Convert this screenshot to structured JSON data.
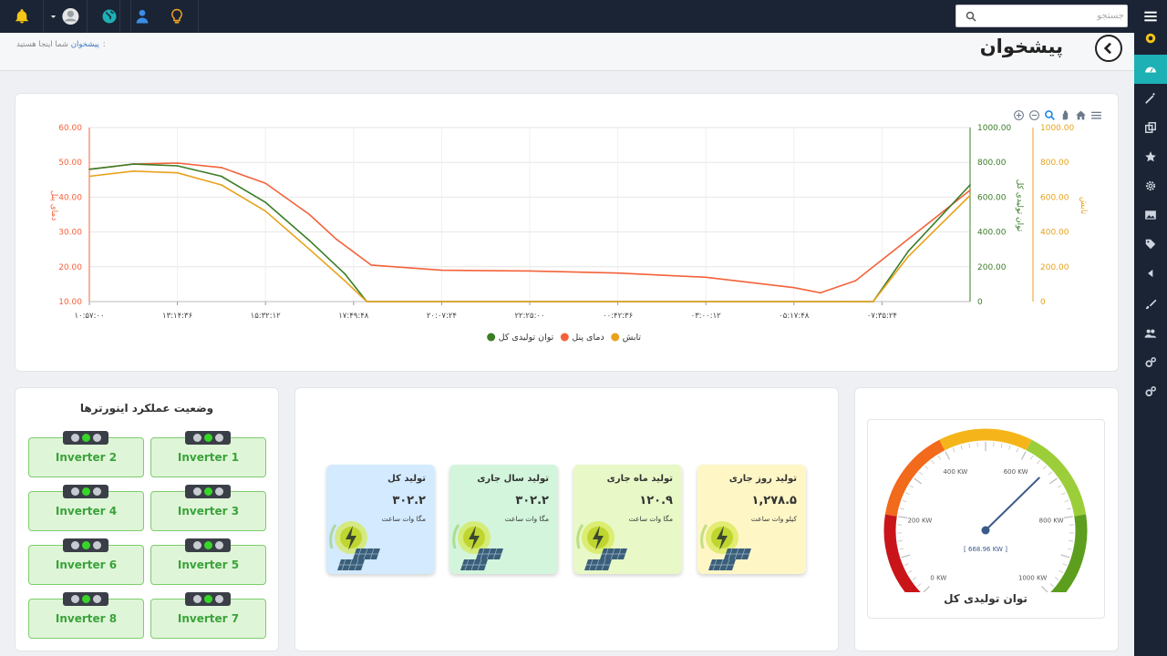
{
  "search": {
    "placeholder": "جستجو"
  },
  "header": {
    "page_title": "پیشخوان",
    "breadcrumb_prefix": "شما اینجا هستید:",
    "breadcrumb_current": "پیشخوان"
  },
  "topbar": {
    "icons": [
      "bell-icon",
      "user-avatar",
      "globe-icon",
      "user-icon",
      "lightbulb-icon"
    ]
  },
  "sidebar": {
    "icons": [
      "menu-icon",
      "badge-icon",
      "dashboard-icon",
      "magic-wand-icon",
      "copy-icon",
      "star-icon",
      "gear-icon",
      "image-icon",
      "tag-icon",
      "caret-left-icon",
      "brush-icon",
      "users-icon",
      "cogs-icon",
      "cogs-icon"
    ]
  },
  "chart_data": {
    "type": "line",
    "x_ticks": [
      "۱۰:۵۷:۰۰",
      "۱۳:۱۴:۳۶",
      "۱۵:۳۲:۱۲",
      "۱۷:۴۹:۴۸",
      "۲۰:۰۷:۲۴",
      "۲۲:۲۵:۰۰",
      "۰۰:۴۲:۳۶",
      "۰۳:۰۰:۱۲",
      "۰۵:۱۷:۴۸",
      "۰۷:۳۵:۲۴"
    ],
    "left_axis": {
      "label": "دمای پنل",
      "range": [
        10,
        60
      ],
      "ticks": [
        "60.00",
        "50.00",
        "40.00",
        "30.00",
        "20.00",
        "10.00"
      ],
      "color": "#f4623a"
    },
    "right_axis_1": {
      "label": "توان تولیدی کل",
      "range": [
        0,
        1000
      ],
      "ticks": [
        "1000.00",
        "800.00",
        "600.00",
        "400.00",
        "200.00",
        "0"
      ],
      "color": "#3a7d27"
    },
    "right_axis_2": {
      "label": "تابش",
      "range": [
        0,
        1000
      ],
      "ticks": [
        "1000.00",
        "800.00",
        "600.00",
        "400.00",
        "200.00",
        "0"
      ],
      "color": "#e8a21c"
    },
    "series": [
      {
        "name": "دمای پنل",
        "axis": "left",
        "color": "#f4623a",
        "x": [
          0,
          0.5,
          1,
          1.5,
          2,
          2.5,
          2.8,
          3.2,
          4,
          5,
          6,
          7,
          8,
          8.3,
          8.7,
          9.5,
          10
        ],
        "y": [
          48,
          49.5,
          49.8,
          48.5,
          44,
          35,
          28,
          20.5,
          19,
          18.8,
          18.2,
          17,
          14,
          12.5,
          16,
          32,
          42
        ]
      },
      {
        "name": "توان تولیدی کل",
        "axis": "right1",
        "color": "#3a7d27",
        "x": [
          0,
          0.5,
          1,
          1.5,
          2,
          2.5,
          2.9,
          3.15,
          5,
          7,
          8.6,
          8.9,
          9.3,
          10
        ],
        "y": [
          760,
          790,
          780,
          720,
          570,
          350,
          160,
          0,
          0,
          0,
          0,
          0,
          290,
          670
        ]
      },
      {
        "name": "تابش",
        "axis": "right2",
        "color": "#e8a21c",
        "x": [
          0,
          0.5,
          1,
          1.5,
          2,
          2.5,
          2.9,
          3.15,
          5,
          7,
          8.6,
          8.9,
          9.3,
          10
        ],
        "y": [
          720,
          750,
          740,
          670,
          520,
          300,
          120,
          0,
          0,
          0,
          0,
          0,
          260,
          610
        ]
      }
    ],
    "legend": [
      "تابش",
      "دمای پنل",
      "توان تولیدی کل"
    ],
    "legend_placement": "bottom-center",
    "grid": true
  },
  "production": [
    {
      "title": "تولید کل",
      "value": "۳۰۲.۲",
      "unit": "مگا وات ساعت",
      "bg": "#d3eaff"
    },
    {
      "title": "تولید سال جاری",
      "value": "۳۰۲.۲",
      "unit": "مگا وات ساعت",
      "bg": "#d2f5dc"
    },
    {
      "title": "تولید ماه جاری",
      "value": "۱۲۰.۹",
      "unit": "مگا وات ساعت",
      "bg": "#e8f8c6"
    },
    {
      "title": "تولید روز جاری",
      "value": "۱,۲۷۸.۵",
      "unit": "کیلو وات ساعت",
      "bg": "#fff6c6"
    }
  ],
  "inverters": {
    "title": "وضعیت عملکرد اینورترها",
    "items": [
      {
        "label": "Inverter 1",
        "status": "green"
      },
      {
        "label": "Inverter 2",
        "status": "green"
      },
      {
        "label": "Inverter 3",
        "status": "green"
      },
      {
        "label": "Inverter 4",
        "status": "green"
      },
      {
        "label": "Inverter 5",
        "status": "green"
      },
      {
        "label": "Inverter 6",
        "status": "green"
      },
      {
        "label": "Inverter 7",
        "status": "green"
      },
      {
        "label": "Inverter 8",
        "status": "green"
      }
    ]
  },
  "gauge": {
    "title": "توان تولیدی کل",
    "value": 668.96,
    "value_label": "[ 668.96 KW ]",
    "min": 0,
    "max": 1000,
    "tick_labels": [
      "0 KW",
      "200 KW",
      "400 KW",
      "600 KW",
      "800 KW",
      "1000 KW"
    ]
  }
}
